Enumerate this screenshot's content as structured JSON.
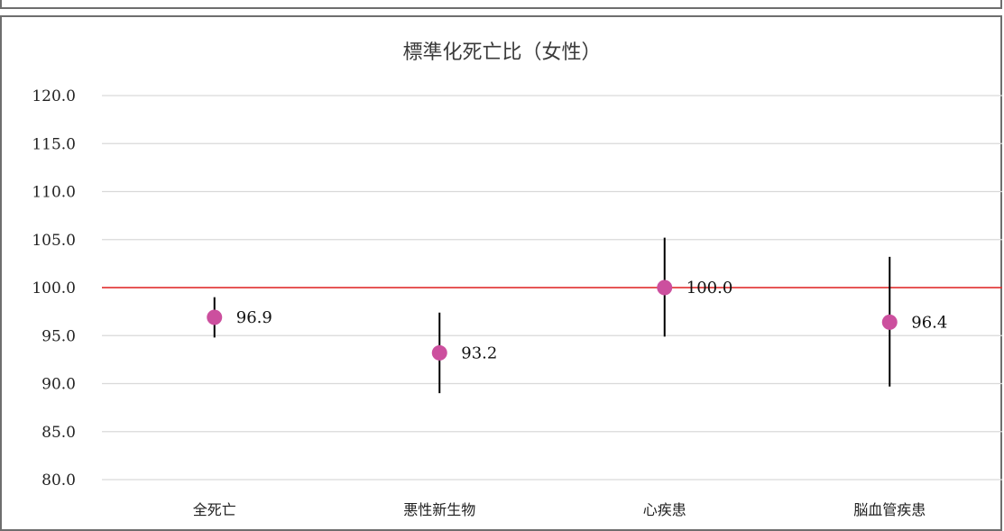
{
  "chart_data": {
    "type": "scatter",
    "title": "標準化死亡比（女性）",
    "categories": [
      "全死亡",
      "悪性新生物",
      "心疾患",
      "脳血管疾患"
    ],
    "series": [
      {
        "values": [
          96.9,
          93.2,
          100.0,
          96.4
        ],
        "lower": [
          94.8,
          89.0,
          94.9,
          89.7
        ],
        "upper": [
          99.0,
          97.4,
          105.2,
          103.2
        ],
        "data_labels": [
          "96.9",
          "93.2",
          "100.0",
          "96.4"
        ],
        "color": "#cc4f9e"
      }
    ],
    "reference_line": {
      "value": 100.0,
      "color": "#e02020"
    },
    "ylim": [
      80,
      120
    ],
    "yticks": [
      "120.0",
      "115.0",
      "110.0",
      "105.0",
      "100.0",
      "95.0",
      "90.0",
      "85.0",
      "80.0"
    ],
    "gridlines": true,
    "gridline_color": "#d9d9d9",
    "errorbar_color": "#000000",
    "legend": "none"
  }
}
